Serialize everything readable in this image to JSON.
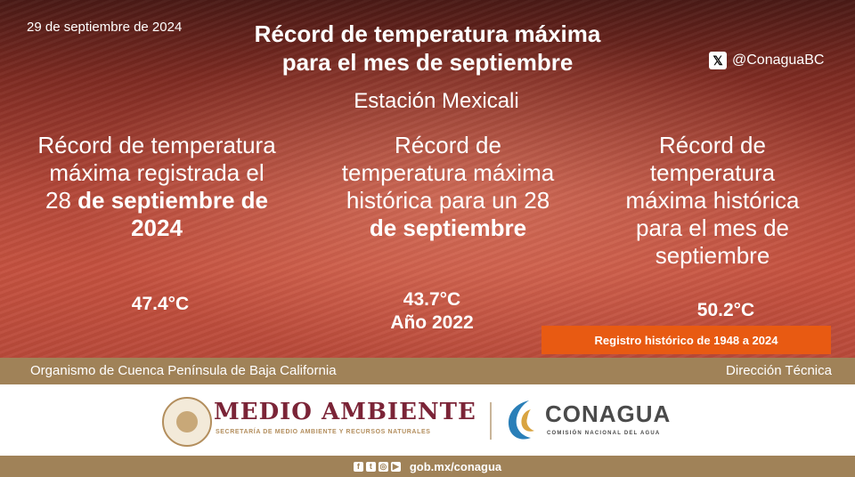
{
  "header": {
    "date": "29 de septiembre de 2024",
    "title_line1": "Récord de temperatura máxima",
    "title_line2": "para el mes de septiembre",
    "social_handle": "@ConaguaBC",
    "station": "Estación Mexicali"
  },
  "columns": [
    {
      "text_plain": "Récord de temperatura máxima registrada el 28",
      "text_bold": "de septiembre de 2024",
      "value": "47.4°C"
    },
    {
      "text_plain": "Récord de temperatura máxima histórica para un 28",
      "text_bold": "de septiembre",
      "value": "43.7°C",
      "year": "Año 2022"
    },
    {
      "text_plain": "Récord de temperatura máxima histórica para el mes de septiembre",
      "value": "50.2°C"
    }
  ],
  "historic_range": "Registro histórico de 1948 a 2024",
  "footer_band": {
    "left": "Organismo de Cuenca Península de Baja California",
    "right": "Dirección Técnica"
  },
  "logos": {
    "medio_ambiente": "MEDIO AMBIENTE",
    "medio_ambiente_sub": "SECRETARÍA DE MEDIO AMBIENTE Y RECURSOS NATURALES",
    "conagua": "CONAGUA",
    "conagua_sub": "COMISIÓN NACIONAL DEL AGUA"
  },
  "bottom_bar": {
    "url": "gob.mx/conagua",
    "icons": [
      "facebook-icon",
      "twitter-icon",
      "instagram-icon",
      "youtube-icon"
    ]
  },
  "colors": {
    "hero": "#b5493a",
    "accent_orange": "#e85a12",
    "band": "#a08258",
    "guinda": "#7b2437"
  }
}
